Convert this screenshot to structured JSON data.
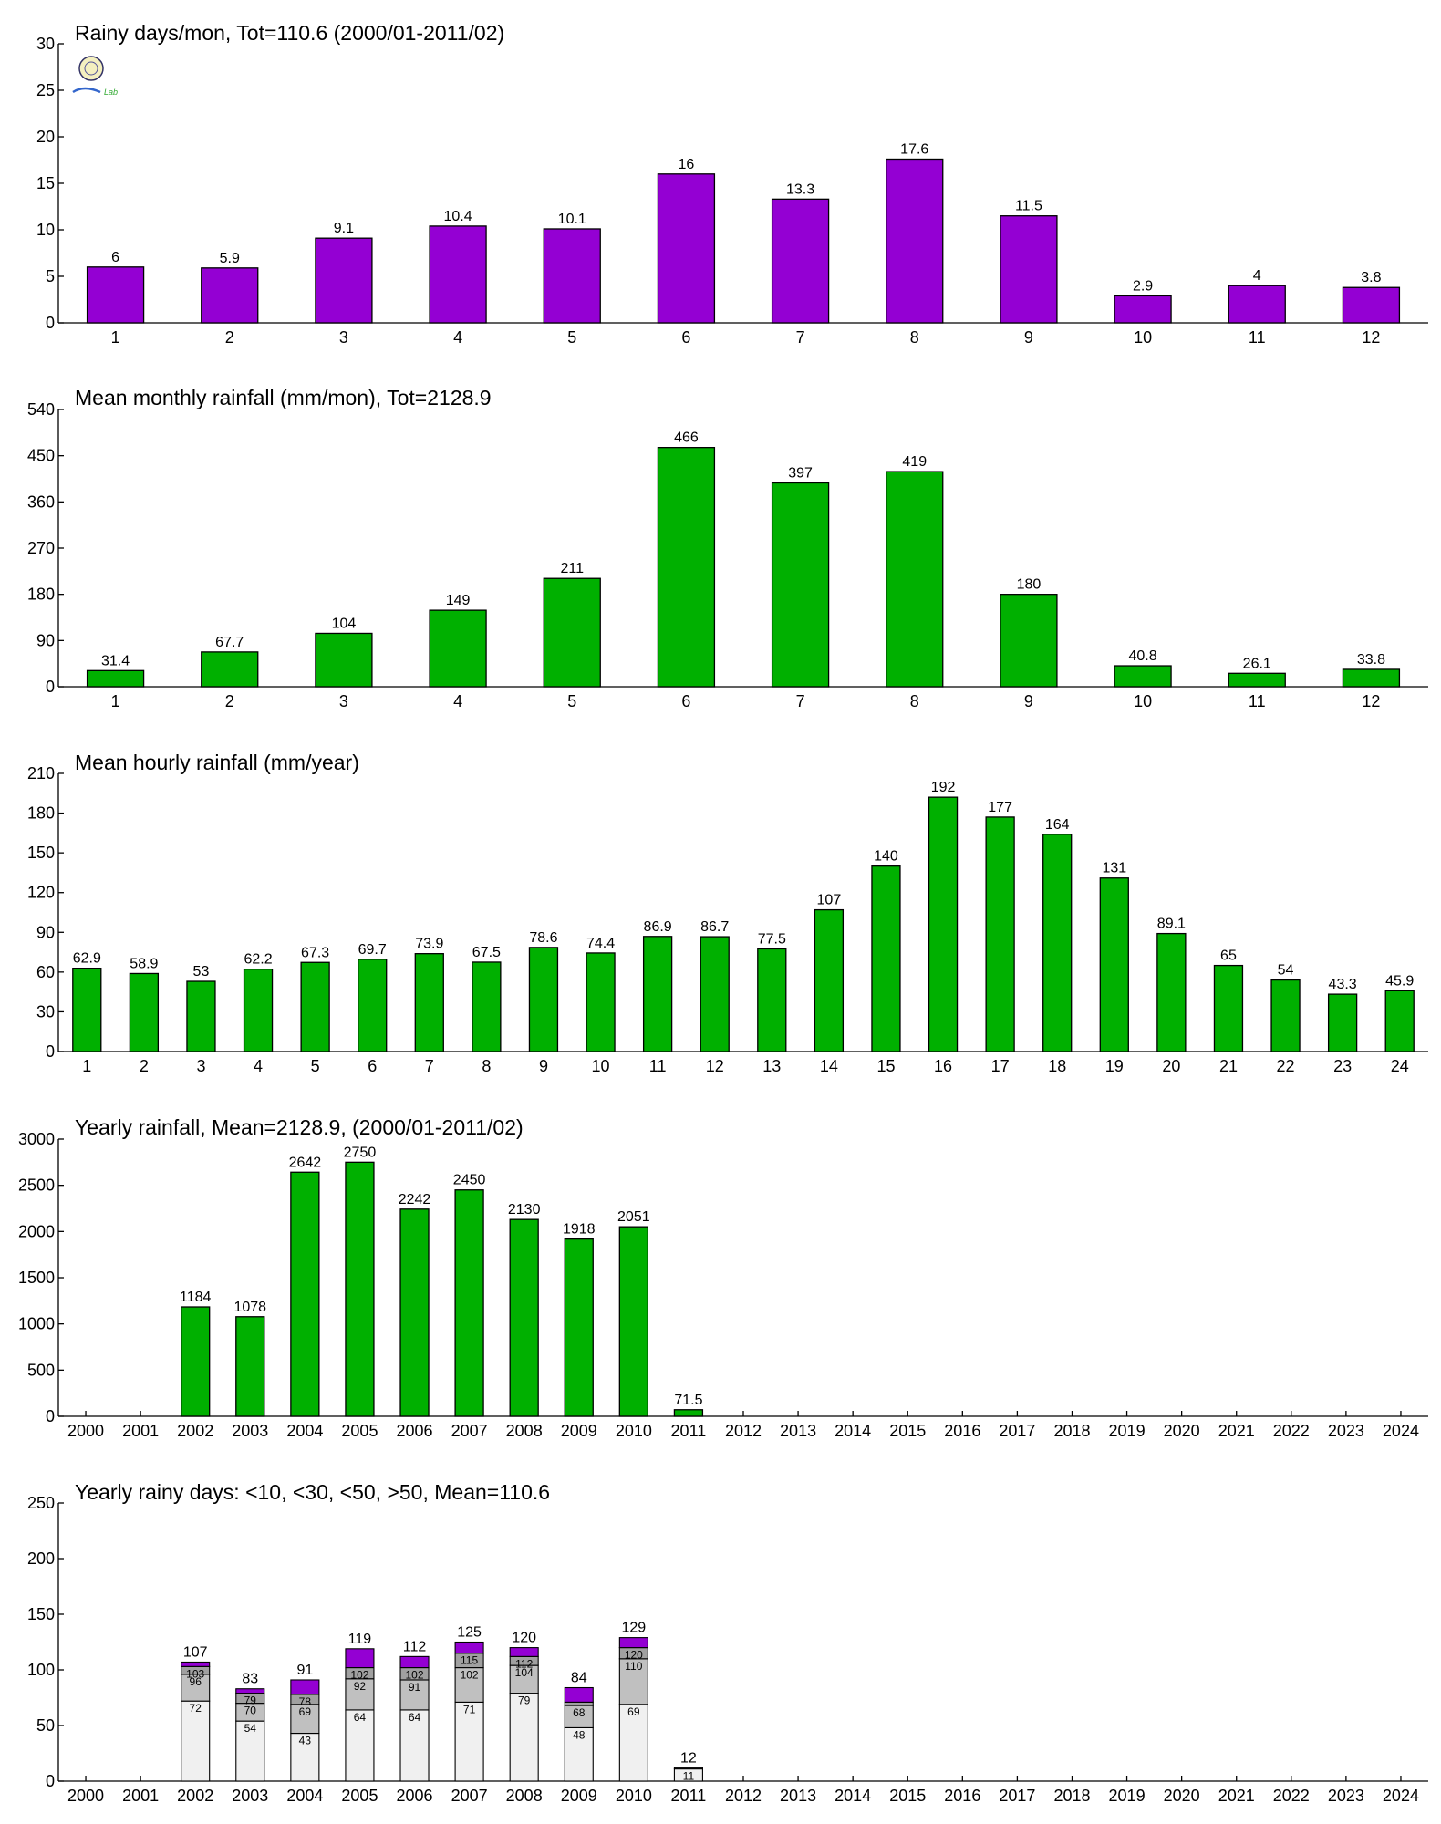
{
  "colors": {
    "purple": "#9400d3",
    "green": "#00b000",
    "light_gray": "#f0f0f0",
    "mid_gray": "#c0c0c0",
    "dark_gray": "#a0a0a0",
    "stroke": "#000000"
  },
  "logo": {
    "icon": "lab-seal-logo",
    "text": "Lab"
  },
  "chart_data": [
    {
      "type": "bar",
      "title": "Rainy days/mon, Tot=110.6 (2000/01-2011/02)",
      "categories": [
        "1",
        "2",
        "3",
        "4",
        "5",
        "6",
        "7",
        "8",
        "9",
        "10",
        "11",
        "12"
      ],
      "values": [
        6,
        5.9,
        9.1,
        10.4,
        10.1,
        16,
        13.3,
        17.6,
        11.5,
        2.9,
        4,
        3.8
      ],
      "labels": [
        "6",
        "5.9",
        "9.1",
        "10.4",
        "10.1",
        "16",
        "13.3",
        "17.6",
        "11.5",
        "2.9",
        "4",
        "3.8"
      ],
      "yticks": [
        "0",
        "5",
        "10",
        "15",
        "20",
        "25",
        "30"
      ],
      "ylim": [
        0,
        30
      ],
      "color": "purple"
    },
    {
      "type": "bar",
      "title": "Mean monthly rainfall (mm/mon), Tot=2128.9",
      "categories": [
        "1",
        "2",
        "3",
        "4",
        "5",
        "6",
        "7",
        "8",
        "9",
        "10",
        "11",
        "12"
      ],
      "values": [
        31.4,
        67.7,
        104,
        149,
        211,
        466,
        397,
        419,
        180,
        40.8,
        26.1,
        33.8
      ],
      "labels": [
        "31.4",
        "67.7",
        "104",
        "149",
        "211",
        "466",
        "397",
        "419",
        "180",
        "40.8",
        "26.1",
        "33.8"
      ],
      "yticks": [
        "0",
        "90",
        "180",
        "270",
        "360",
        "450",
        "540"
      ],
      "ylim": [
        0,
        540
      ],
      "color": "green"
    },
    {
      "type": "bar",
      "title": "Mean hourly rainfall (mm/year)",
      "categories": [
        "1",
        "2",
        "3",
        "4",
        "5",
        "6",
        "7",
        "8",
        "9",
        "10",
        "11",
        "12",
        "13",
        "14",
        "15",
        "16",
        "17",
        "18",
        "19",
        "20",
        "21",
        "22",
        "23",
        "24"
      ],
      "values": [
        62.9,
        58.9,
        53,
        62.2,
        67.3,
        69.7,
        73.9,
        67.5,
        78.6,
        74.4,
        86.9,
        86.7,
        77.5,
        107,
        140,
        192,
        177,
        164,
        131,
        89.1,
        65,
        54,
        43.3,
        45.9
      ],
      "labels": [
        "62.9",
        "58.9",
        "53",
        "62.2",
        "67.3",
        "69.7",
        "73.9",
        "67.5",
        "78.6",
        "74.4",
        "86.9",
        "86.7",
        "77.5",
        "107",
        "140",
        "192",
        "177",
        "164",
        "131",
        "89.1",
        "65",
        "54",
        "43.3",
        "45.9"
      ],
      "yticks": [
        "0",
        "30",
        "60",
        "90",
        "120",
        "150",
        "180",
        "210"
      ],
      "ylim": [
        0,
        210
      ],
      "color": "green"
    },
    {
      "type": "bar",
      "title": "Yearly rainfall, Mean=2128.9, (2000/01-2011/02)",
      "categories": [
        "2000",
        "2001",
        "2002",
        "2003",
        "2004",
        "2005",
        "2006",
        "2007",
        "2008",
        "2009",
        "2010",
        "2011",
        "2012",
        "2013",
        "2014",
        "2015",
        "2016",
        "2017",
        "2018",
        "2019",
        "2020",
        "2021",
        "2022",
        "2023",
        "2024"
      ],
      "values": [
        null,
        null,
        1184,
        1078,
        2642,
        2750,
        2242,
        2450,
        2130,
        1918,
        2051,
        71.5,
        null,
        null,
        null,
        null,
        null,
        null,
        null,
        null,
        null,
        null,
        null,
        null,
        null
      ],
      "labels": [
        "",
        "",
        "1184",
        "1078",
        "2642",
        "2750",
        "2242",
        "2450",
        "2130",
        "1918",
        "2051",
        "71.5",
        "",
        "",
        "",
        "",
        "",
        "",
        "",
        "",
        "",
        "",
        "",
        "",
        " "
      ],
      "yticks": [
        "0",
        "500",
        "1000",
        "1500",
        "2000",
        "2500",
        "3000"
      ],
      "ylim": [
        0,
        3000
      ],
      "color": "green"
    },
    {
      "type": "bar",
      "stacked": true,
      "title": "Yearly rainy days: <10, <30, <50, >50, Mean=110.6",
      "categories": [
        "2000",
        "2001",
        "2002",
        "2003",
        "2004",
        "2005",
        "2006",
        "2007",
        "2008",
        "2009",
        "2010",
        "2011",
        "2012",
        "2013",
        "2014",
        "2015",
        "2016",
        "2017",
        "2018",
        "2019",
        "2020",
        "2021",
        "2022",
        "2023",
        "2024"
      ],
      "cumulative": [
        null,
        null,
        [
          72,
          96,
          103,
          107
        ],
        [
          54,
          70,
          79,
          83
        ],
        [
          43,
          69,
          78,
          91
        ],
        [
          64,
          92,
          102,
          119
        ],
        [
          64,
          91,
          102,
          112
        ],
        [
          71,
          102,
          115,
          125
        ],
        [
          79,
          104,
          112,
          120
        ],
        [
          48,
          68,
          71,
          84
        ],
        [
          69,
          110,
          120,
          129
        ],
        [
          11,
          12,
          12,
          12
        ],
        null,
        null,
        null,
        null,
        null,
        null,
        null,
        null,
        null,
        null,
        null,
        null,
        null
      ],
      "segment_labels": [
        null,
        null,
        [
          "72",
          "96",
          "103"
        ],
        [
          "54",
          "70",
          "79"
        ],
        [
          "43",
          "69",
          "78"
        ],
        [
          "64",
          "92",
          "102"
        ],
        [
          "64",
          "91",
          "102"
        ],
        [
          "71",
          "102",
          "115"
        ],
        [
          "79",
          "104",
          "112"
        ],
        [
          "48",
          "68",
          ""
        ],
        [
          "69",
          "110",
          "120"
        ],
        [
          "11",
          "",
          ""
        ],
        null,
        null,
        null,
        null,
        null,
        null,
        null,
        null,
        null,
        null,
        null,
        null,
        null
      ],
      "totals": [
        "",
        "",
        "107",
        "83",
        "91",
        "119",
        "112",
        "125",
        "120",
        "84",
        "129",
        "12",
        "",
        "",
        "",
        "",
        "",
        "",
        "",
        "",
        "",
        "",
        "",
        "",
        ""
      ],
      "yticks": [
        "0",
        "50",
        "100",
        "150",
        "200",
        "250"
      ],
      "ylim": [
        0,
        250
      ],
      "segment_colors": [
        "light_gray",
        "mid_gray",
        "dark_gray",
        "purple"
      ]
    }
  ]
}
